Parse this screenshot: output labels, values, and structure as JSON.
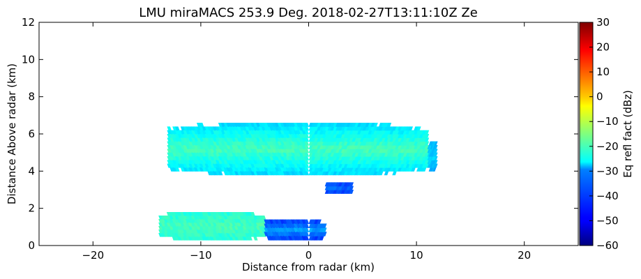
{
  "chart_data": {
    "type": "heatmap",
    "title": "LMU miraMACS 253.9 Deg. 2018-02-27T13:11:10Z  Ze",
    "xlabel": "Distance from radar (km)",
    "ylabel": "Distance Above radar  (km)",
    "xlim": [
      -25,
      25
    ],
    "ylim": [
      0,
      12
    ],
    "x_ticks": [
      -20,
      -10,
      0,
      10,
      20
    ],
    "x_tick_labels": [
      "−20",
      "−10",
      "0",
      "10",
      "20"
    ],
    "y_ticks": [
      0,
      2,
      4,
      6,
      8,
      10,
      12
    ],
    "y_tick_labels": [
      "0",
      "2",
      "4",
      "6",
      "8",
      "10",
      "12"
    ],
    "colorbar": {
      "label": "Eq refl fact (dBz)",
      "range": [
        -60,
        30
      ],
      "ticks": [
        -60,
        -50,
        -40,
        -30,
        -20,
        -10,
        0,
        10,
        20,
        30
      ],
      "tick_labels": [
        "−60",
        "−50",
        "−40",
        "−30",
        "−20",
        "−10",
        "0",
        "10",
        "20",
        "30"
      ],
      "colormap": "jet"
    },
    "echo_regions": [
      {
        "x_range": [
          -13,
          11
        ],
        "y_range": [
          3.8,
          6.6
        ],
        "dbz_range": [
          -35,
          -20
        ]
      },
      {
        "x_range": [
          1.5,
          4
        ],
        "y_range": [
          2.8,
          3.4
        ],
        "dbz_range": [
          -45,
          -40
        ]
      },
      {
        "x_range": [
          11,
          11.8
        ],
        "y_range": [
          4.0,
          5.6
        ],
        "dbz_range": [
          -35,
          -30
        ]
      },
      {
        "x_range": [
          -13.8,
          -4
        ],
        "y_range": [
          0.3,
          1.8
        ],
        "dbz_range": [
          -25,
          -20
        ]
      },
      {
        "x_range": [
          -4,
          1.5
        ],
        "y_range": [
          0.3,
          1.4
        ],
        "dbz_range": [
          -50,
          -35
        ]
      }
    ],
    "grid": false
  }
}
